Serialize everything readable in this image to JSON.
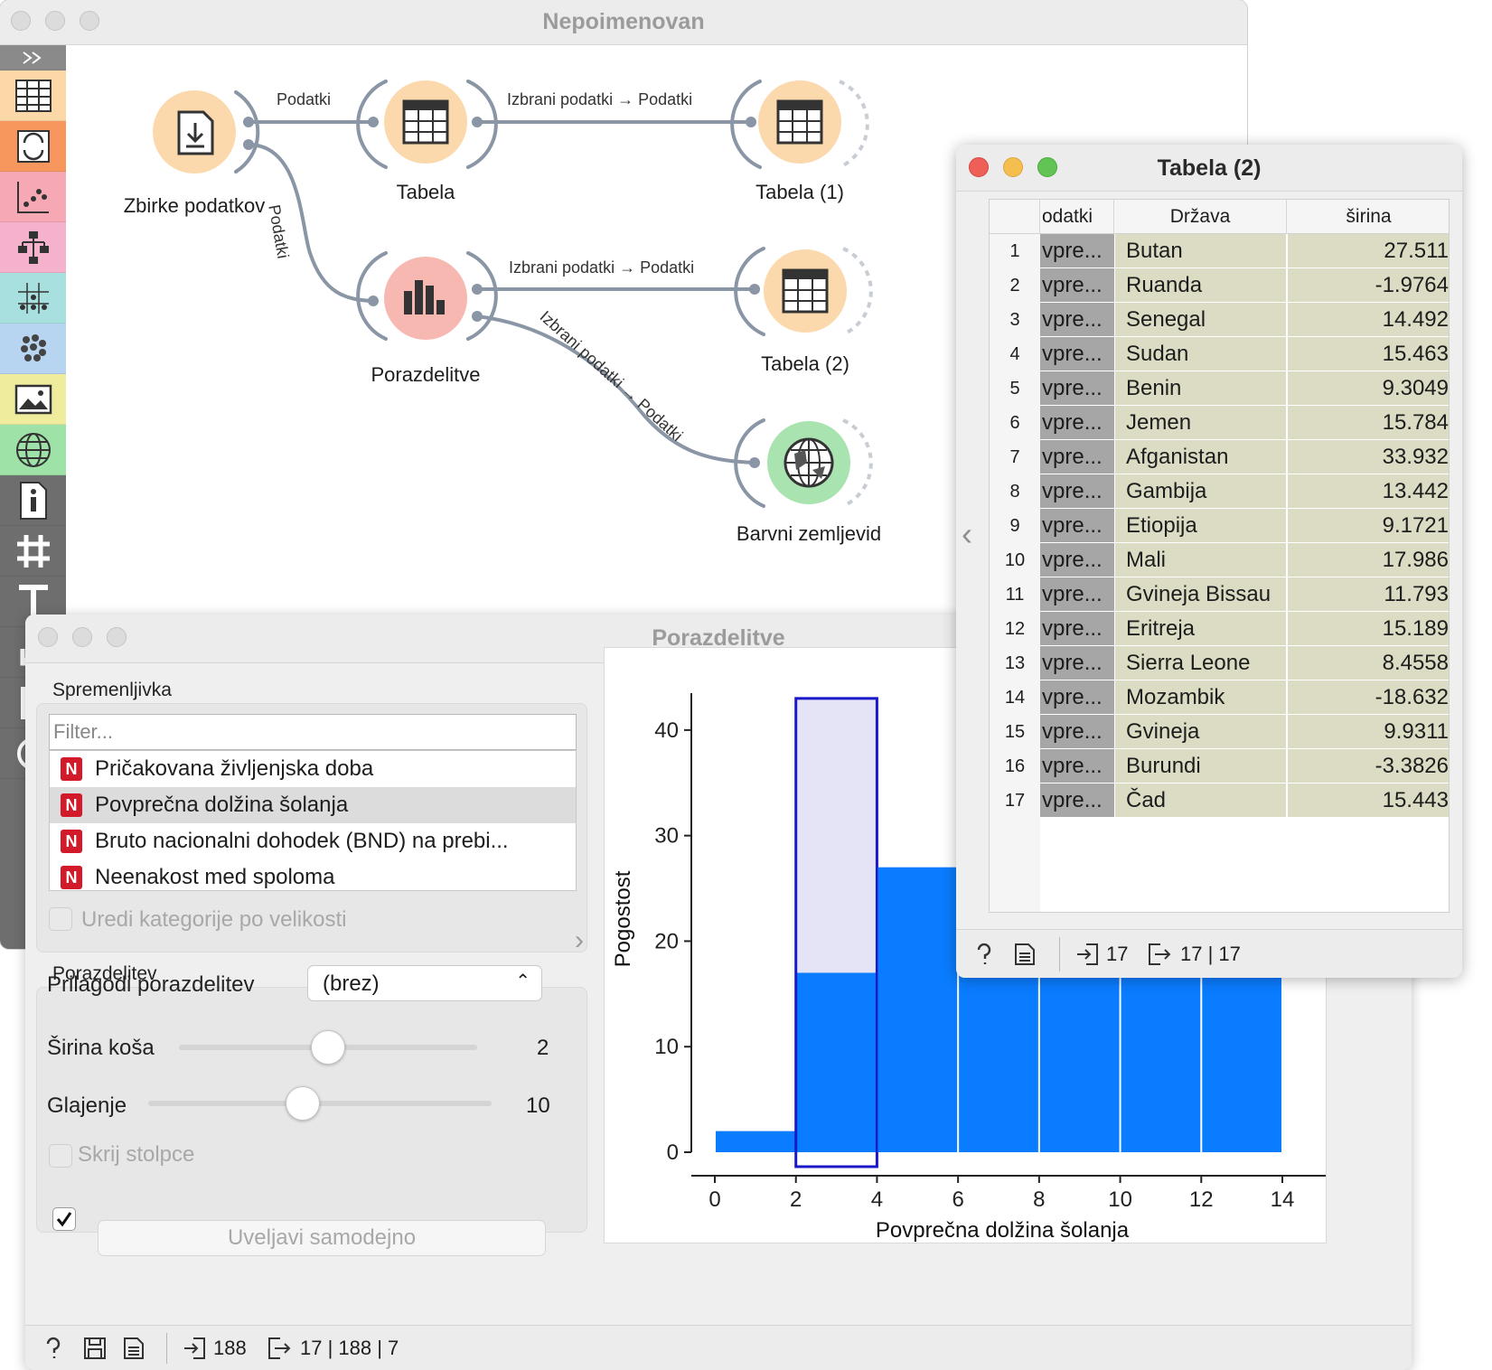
{
  "main_window": {
    "title": "Nepoimenovan",
    "toolbar_icons": [
      "collapse-icon",
      "data-table-icon",
      "transform-icon",
      "scatter-plot-icon",
      "tree-icon",
      "multi-test-icon",
      "clustering-icon",
      "image-icon",
      "globe-icon",
      "info-icon",
      "grid-icon",
      "text-icon",
      "arrow-icon",
      "page-icon",
      "help-icon"
    ],
    "nodes": [
      {
        "id": "zbirke",
        "label": "Zbirke podatkov",
        "color": "#fbd9ad",
        "icon": "file-download-icon"
      },
      {
        "id": "tabela",
        "label": "Tabela",
        "color": "#fbd9ad",
        "icon": "table-icon"
      },
      {
        "id": "tabela1",
        "label": "Tabela (1)",
        "color": "#fbd9ad",
        "icon": "table-icon"
      },
      {
        "id": "porazdelitve",
        "label": "Porazdelitve",
        "color": "#f8b8b2",
        "icon": "bar-chart-icon"
      },
      {
        "id": "tabela2",
        "label": "Tabela (2)",
        "color": "#fbd9ad",
        "icon": "table-icon"
      },
      {
        "id": "barvni",
        "label": "Barvni zemljevid",
        "color": "#a9e3b0",
        "icon": "globe-icon"
      }
    ],
    "links": [
      {
        "from": "zbirke",
        "to": "tabela",
        "label": "Podatki"
      },
      {
        "from": "tabela",
        "to": "tabela1",
        "label": "Izbrani podatki → Podatki"
      },
      {
        "from": "zbirke",
        "to": "porazdelitve",
        "label": "Podatki"
      },
      {
        "from": "porazdelitve",
        "to": "tabela2",
        "label": "Izbrani podatki → Podatki"
      },
      {
        "from": "porazdelitve",
        "to": "barvni",
        "label": "Izbrani podatki → Podatki"
      }
    ]
  },
  "dist_window": {
    "title": "Porazdelitve",
    "variable_section": "Spremenljivka",
    "filter_placeholder": "Filter...",
    "variables": [
      {
        "type": "N",
        "name": "Pričakovana življenjska doba",
        "selected": false
      },
      {
        "type": "N",
        "name": "Povprečna dolžina šolanja",
        "selected": true
      },
      {
        "type": "N",
        "name": "Bruto nacionalni dohodek (BND) na prebi...",
        "selected": false
      },
      {
        "type": "N",
        "name": "Neenakost med spoloma",
        "selected": false
      }
    ],
    "sort_label": "Uredi kategorije po velikosti",
    "distribution_section": "Porazdelitev",
    "fit_label": "Prilagodi porazdelitev",
    "fit_value": "(brez)",
    "bin_width_label": "Širina koša",
    "bin_width_value": "2",
    "bin_width_fraction": 0.5,
    "smoothing_label": "Glajenje",
    "smoothing_value": "10",
    "smoothing_fraction": 0.45,
    "hide_bars_label": "Skrij stolpce",
    "apply_label": "Uveljavi samodejno",
    "apply_checked": true,
    "status": {
      "input": "188",
      "output": "17 | 188 | 7"
    }
  },
  "chart_data": {
    "type": "bar",
    "ylabel": "Pogostost",
    "xlabel": "Povprečna dolžina šolanja",
    "bins": [
      {
        "x0": 0,
        "x1": 2,
        "value": 2,
        "selected_part": 0
      },
      {
        "x0": 2,
        "x1": 4,
        "value": 43,
        "selected_part": 17
      },
      {
        "x0": 4,
        "x1": 6,
        "value": 27,
        "selected_part": 0
      },
      {
        "x0": 6,
        "x1": 8,
        "value": 27,
        "selected_part": 0
      },
      {
        "x0": 8,
        "x1": 10,
        "value": 27,
        "selected_part": 0
      },
      {
        "x0": 10,
        "x1": 12,
        "value": 27,
        "selected_part": 0
      },
      {
        "x0": 12,
        "x1": 14,
        "value": 27,
        "selected_part": 0
      }
    ],
    "selected_bin": 1,
    "xlim": [
      0,
      14
    ],
    "ylim": [
      0,
      40
    ],
    "xticks": [
      0,
      2,
      4,
      6,
      8,
      10,
      12,
      14
    ],
    "yticks": [
      0,
      10,
      20,
      30,
      40
    ],
    "bar_color": "#0a7cff",
    "selection_fill": "#e4e4f6",
    "selection_border": "#1a18c8"
  },
  "table_window": {
    "title": "Tabela (2)",
    "columns": [
      "odatki",
      "Država",
      "širina"
    ],
    "rows": [
      [
        "1",
        "vpre...",
        "Butan",
        "27.511"
      ],
      [
        "2",
        "vpre...",
        "Ruanda",
        "-1.9764"
      ],
      [
        "3",
        "vpre...",
        "Senegal",
        "14.492"
      ],
      [
        "4",
        "vpre...",
        "Sudan",
        "15.463"
      ],
      [
        "5",
        "vpre...",
        "Benin",
        "9.3049"
      ],
      [
        "6",
        "vpre...",
        "Jemen",
        "15.784"
      ],
      [
        "7",
        "vpre...",
        "Afganistan",
        "33.932"
      ],
      [
        "8",
        "vpre...",
        "Gambija",
        "13.442"
      ],
      [
        "9",
        "vpre...",
        "Etiopija",
        "9.1721"
      ],
      [
        "10",
        "vpre...",
        "Mali",
        "17.986"
      ],
      [
        "11",
        "vpre...",
        "Gvineja Bissau",
        "11.793"
      ],
      [
        "12",
        "vpre...",
        "Eritreja",
        "15.189"
      ],
      [
        "13",
        "vpre...",
        "Sierra Leone",
        "8.4558"
      ],
      [
        "14",
        "vpre...",
        "Mozambik",
        "-18.632"
      ],
      [
        "15",
        "vpre...",
        "Gvineja",
        "9.9311"
      ],
      [
        "16",
        "vpre...",
        "Burundi",
        "-3.3826"
      ],
      [
        "17",
        "vpre...",
        "Čad",
        "15.443"
      ]
    ],
    "status": {
      "input": "17",
      "output": "17 | 17"
    }
  }
}
